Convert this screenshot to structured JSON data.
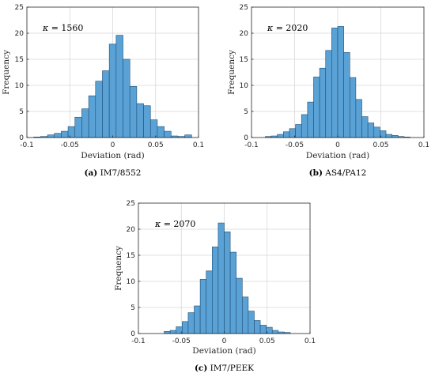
{
  "chart_data": [
    {
      "type": "histogram",
      "caption_tag": "(a)",
      "caption_text": "IM7/8552",
      "annotation_symbol": "κ",
      "annotation_value": "= 1560",
      "xlabel": "Deviation (rad)",
      "ylabel": "Frequency",
      "xlim": [
        -0.1,
        0.1
      ],
      "ylim": [
        0,
        25
      ],
      "xticks": [
        "-0.1",
        "-0.05",
        "0",
        "0.05",
        "0.1"
      ],
      "yticks": [
        "0",
        "5",
        "10",
        "15",
        "20",
        "25"
      ],
      "grid": true,
      "bar_color": "#5aa2d6",
      "edge_color": "#1f4f73",
      "bins": [
        {
          "x0": -0.092,
          "x1": -0.084,
          "value": 0.1
        },
        {
          "x0": -0.084,
          "x1": -0.076,
          "value": 0.2
        },
        {
          "x0": -0.076,
          "x1": -0.068,
          "value": 0.5
        },
        {
          "x0": -0.068,
          "x1": -0.06,
          "value": 0.8
        },
        {
          "x0": -0.06,
          "x1": -0.052,
          "value": 1.2
        },
        {
          "x0": -0.052,
          "x1": -0.044,
          "value": 2.1
        },
        {
          "x0": -0.044,
          "x1": -0.036,
          "value": 3.9
        },
        {
          "x0": -0.036,
          "x1": -0.028,
          "value": 5.5
        },
        {
          "x0": -0.028,
          "x1": -0.02,
          "value": 8.0
        },
        {
          "x0": -0.02,
          "x1": -0.012,
          "value": 10.8
        },
        {
          "x0": -0.012,
          "x1": -0.004,
          "value": 12.8
        },
        {
          "x0": -0.004,
          "x1": 0.004,
          "value": 17.9
        },
        {
          "x0": 0.004,
          "x1": 0.012,
          "value": 19.6
        },
        {
          "x0": 0.012,
          "x1": 0.02,
          "value": 15.0
        },
        {
          "x0": 0.02,
          "x1": 0.028,
          "value": 9.8
        },
        {
          "x0": 0.028,
          "x1": 0.036,
          "value": 6.5
        },
        {
          "x0": 0.036,
          "x1": 0.044,
          "value": 6.1
        },
        {
          "x0": 0.044,
          "x1": 0.052,
          "value": 3.4
        },
        {
          "x0": 0.052,
          "x1": 0.06,
          "value": 2.1
        },
        {
          "x0": 0.06,
          "x1": 0.068,
          "value": 1.2
        },
        {
          "x0": 0.068,
          "x1": 0.076,
          "value": 0.3
        },
        {
          "x0": 0.076,
          "x1": 0.084,
          "value": 0.2
        },
        {
          "x0": 0.084,
          "x1": 0.092,
          "value": 0.5
        }
      ]
    },
    {
      "type": "histogram",
      "caption_tag": "(b)",
      "caption_text": "AS4/PA12",
      "annotation_symbol": "κ",
      "annotation_value": "= 2020",
      "xlabel": "Deviation (rad)",
      "ylabel": "Frequency",
      "xlim": [
        -0.1,
        0.1
      ],
      "ylim": [
        0,
        25
      ],
      "xticks": [
        "-0.1",
        "-0.05",
        "0",
        "0.05",
        "0.1"
      ],
      "yticks": [
        "0",
        "5",
        "10",
        "15",
        "20",
        "25"
      ],
      "grid": true,
      "bar_color": "#5aa2d6",
      "edge_color": "#1f4f73",
      "bins": [
        {
          "x0": -0.084,
          "x1": -0.077,
          "value": 0.2
        },
        {
          "x0": -0.077,
          "x1": -0.07,
          "value": 0.3
        },
        {
          "x0": -0.07,
          "x1": -0.063,
          "value": 0.6
        },
        {
          "x0": -0.063,
          "x1": -0.056,
          "value": 1.1
        },
        {
          "x0": -0.056,
          "x1": -0.049,
          "value": 1.7
        },
        {
          "x0": -0.049,
          "x1": -0.042,
          "value": 2.5
        },
        {
          "x0": -0.042,
          "x1": -0.035,
          "value": 4.4
        },
        {
          "x0": -0.035,
          "x1": -0.028,
          "value": 6.8
        },
        {
          "x0": -0.028,
          "x1": -0.021,
          "value": 11.6
        },
        {
          "x0": -0.021,
          "x1": -0.014,
          "value": 13.3
        },
        {
          "x0": -0.014,
          "x1": -0.007,
          "value": 16.7
        },
        {
          "x0": -0.007,
          "x1": 0.0,
          "value": 21.0
        },
        {
          "x0": 0.0,
          "x1": 0.007,
          "value": 21.3
        },
        {
          "x0": 0.007,
          "x1": 0.014,
          "value": 16.3
        },
        {
          "x0": 0.014,
          "x1": 0.021,
          "value": 11.5
        },
        {
          "x0": 0.021,
          "x1": 0.028,
          "value": 7.3
        },
        {
          "x0": 0.028,
          "x1": 0.035,
          "value": 4.0
        },
        {
          "x0": 0.035,
          "x1": 0.042,
          "value": 2.8
        },
        {
          "x0": 0.042,
          "x1": 0.049,
          "value": 2.0
        },
        {
          "x0": 0.049,
          "x1": 0.056,
          "value": 1.3
        },
        {
          "x0": 0.056,
          "x1": 0.063,
          "value": 0.6
        },
        {
          "x0": 0.063,
          "x1": 0.07,
          "value": 0.4
        },
        {
          "x0": 0.07,
          "x1": 0.077,
          "value": 0.2
        },
        {
          "x0": 0.077,
          "x1": 0.084,
          "value": 0.1
        }
      ]
    },
    {
      "type": "histogram",
      "caption_tag": "(c)",
      "caption_text": "IM7/PEEK",
      "annotation_symbol": "κ",
      "annotation_value": "= 2070",
      "xlabel": "Deviation (rad)",
      "ylabel": "Frequency",
      "xlim": [
        -0.1,
        0.1
      ],
      "ylim": [
        0,
        25
      ],
      "xticks": [
        "-0.1",
        "-0.05",
        "0",
        "0.05",
        "0.1"
      ],
      "yticks": [
        "0",
        "5",
        "10",
        "15",
        "20",
        "25"
      ],
      "grid": true,
      "bar_color": "#5aa2d6",
      "edge_color": "#1f4f73",
      "bins": [
        {
          "x0": -0.07,
          "x1": -0.063,
          "value": 0.4
        },
        {
          "x0": -0.063,
          "x1": -0.056,
          "value": 0.6
        },
        {
          "x0": -0.056,
          "x1": -0.049,
          "value": 1.3
        },
        {
          "x0": -0.049,
          "x1": -0.042,
          "value": 2.3
        },
        {
          "x0": -0.042,
          "x1": -0.035,
          "value": 4.0
        },
        {
          "x0": -0.035,
          "x1": -0.028,
          "value": 5.3
        },
        {
          "x0": -0.028,
          "x1": -0.021,
          "value": 10.4
        },
        {
          "x0": -0.021,
          "x1": -0.014,
          "value": 12.0
        },
        {
          "x0": -0.014,
          "x1": -0.007,
          "value": 16.6
        },
        {
          "x0": -0.007,
          "x1": 0.0,
          "value": 21.2
        },
        {
          "x0": 0.0,
          "x1": 0.007,
          "value": 19.5
        },
        {
          "x0": 0.007,
          "x1": 0.014,
          "value": 15.6
        },
        {
          "x0": 0.014,
          "x1": 0.021,
          "value": 10.6
        },
        {
          "x0": 0.021,
          "x1": 0.028,
          "value": 7.0
        },
        {
          "x0": 0.028,
          "x1": 0.035,
          "value": 4.3
        },
        {
          "x0": 0.035,
          "x1": 0.042,
          "value": 2.5
        },
        {
          "x0": 0.042,
          "x1": 0.049,
          "value": 1.6
        },
        {
          "x0": 0.049,
          "x1": 0.056,
          "value": 1.2
        },
        {
          "x0": 0.056,
          "x1": 0.063,
          "value": 0.6
        },
        {
          "x0": 0.063,
          "x1": 0.07,
          "value": 0.3
        },
        {
          "x0": 0.07,
          "x1": 0.077,
          "value": 0.2
        }
      ]
    }
  ]
}
